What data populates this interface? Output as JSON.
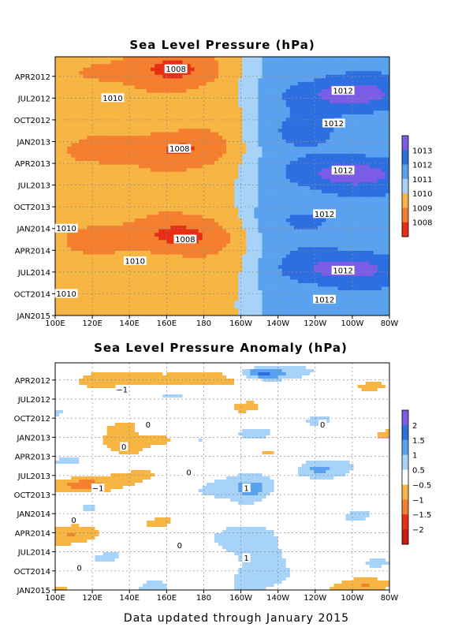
{
  "footer": "Data updated through January 2015",
  "chart_data": [
    {
      "type": "heatmap",
      "title": "Sea Level Pressure (hPa)",
      "xlabel": "",
      "ylabel": "",
      "x_ticks": [
        "100E",
        "120E",
        "140E",
        "160E",
        "180",
        "160W",
        "140W",
        "120W",
        "100W",
        "80W"
      ],
      "y_ticks": [
        "APR2012",
        "JUL2012",
        "OCT2012",
        "JAN2013",
        "APR2013",
        "JUL2013",
        "OCT2013",
        "JAN2014",
        "APR2014",
        "JUL2014",
        "OCT2014",
        "JAN2015"
      ],
      "colorbar": {
        "levels": [
          "1013",
          "1012",
          "1011",
          "1010",
          "1009",
          "1008"
        ],
        "colors": [
          "#7b5ce6",
          "#2d6fe0",
          "#5aa2f0",
          "#a6d3f7",
          "#f7b543",
          "#f47f2e",
          "#e62f14"
        ]
      },
      "contour_labels": [
        {
          "text": "1008",
          "lon": 165,
          "month": -1
        },
        {
          "text": "1010",
          "lon": 131,
          "month": 3
        },
        {
          "text": "1012",
          "lon": 255,
          "month": 2
        },
        {
          "text": "1012",
          "lon": 250,
          "month": 6.5
        },
        {
          "text": "1008",
          "lon": 167,
          "month": 10
        },
        {
          "text": "1012",
          "lon": 255,
          "month": 13
        },
        {
          "text": "1012",
          "lon": 245,
          "month": 19
        },
        {
          "text": "1010",
          "lon": 106,
          "month": 21
        },
        {
          "text": "1008",
          "lon": 170,
          "month": 22.5
        },
        {
          "text": "1010",
          "lon": 143,
          "month": 25.5
        },
        {
          "text": "1012",
          "lon": 255,
          "month": 26.8
        },
        {
          "text": "1010",
          "lon": 106,
          "month": 30
        },
        {
          "text": "1012",
          "lon": 245,
          "month": 30.8
        }
      ],
      "fields": {
        "west_zonal_mean": 1009.3,
        "east_pacific_peak": 1013.1,
        "minimum": 1007.7
      }
    },
    {
      "type": "heatmap",
      "title": "Sea Level Pressure Anomaly (hPa)",
      "xlabel": "",
      "ylabel": "",
      "x_ticks": [
        "100E",
        "120E",
        "140E",
        "160E",
        "180",
        "160W",
        "140W",
        "120W",
        "100W",
        "80W"
      ],
      "y_ticks": [
        "APR2012",
        "JUL2012",
        "OCT2012",
        "JAN2013",
        "APR2013",
        "JUL2013",
        "OCT2013",
        "JAN2014",
        "APR2014",
        "JUL2014",
        "OCT2014",
        "JAN2015"
      ],
      "colorbar": {
        "levels": [
          "2",
          "1.5",
          "1",
          "0.5",
          "−0.5",
          "−1",
          "−1.5",
          "−2"
        ],
        "colors": [
          "#7b5ce6",
          "#2d6fe0",
          "#5aa2f0",
          "#a6d3f7",
          "#ffffff",
          "#f7b543",
          "#f47f2e",
          "#e62f14",
          "#c81a10"
        ]
      },
      "contour_labels": [
        {
          "text": "−1",
          "lon": 136,
          "month": 1.5
        },
        {
          "text": "0",
          "lon": 150,
          "month": 7
        },
        {
          "text": "0",
          "lon": 244,
          "month": 7
        },
        {
          "text": "0",
          "lon": 137,
          "month": 10.5
        },
        {
          "text": "0",
          "lon": 172,
          "month": 14.5
        },
        {
          "text": "−1",
          "lon": 123,
          "month": 17
        },
        {
          "text": "1",
          "lon": 203,
          "month": 17
        },
        {
          "text": "0",
          "lon": 110,
          "month": 22
        },
        {
          "text": "0",
          "lon": 167,
          "month": 26
        },
        {
          "text": "1",
          "lon": 203,
          "month": 28
        },
        {
          "text": "0",
          "lon": 113,
          "month": 29.5
        }
      ],
      "fields": {
        "amplitude": 1.6
      }
    }
  ]
}
